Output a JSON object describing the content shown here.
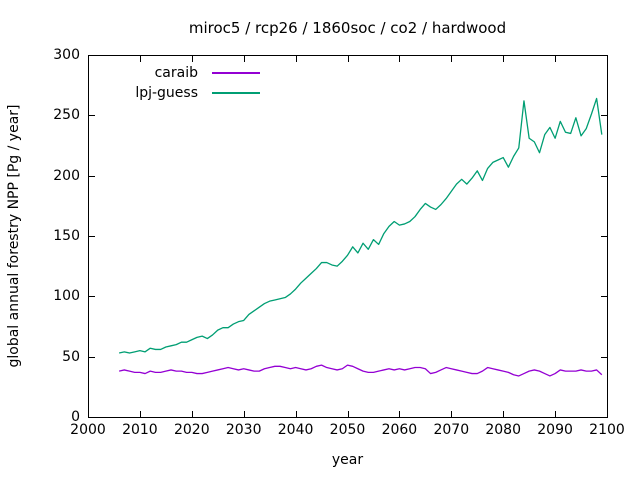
{
  "title": "miroc5 / rcp26 / 1860soc / co2 / hardwood",
  "colors": {
    "background": "#ffffff",
    "text": "#000000",
    "axis": "#000000",
    "caraib": "#9400d3",
    "lpj_guess": "#009e73"
  },
  "chart_data": {
    "type": "line",
    "title": "miroc5 / rcp26 / 1860soc / co2 / hardwood",
    "xlabel": "year",
    "ylabel": "global annual forestry NPP [Pg / year]",
    "xlim": [
      2000,
      2100
    ],
    "ylim": [
      0,
      300
    ],
    "xticks": [
      2000,
      2010,
      2020,
      2030,
      2040,
      2050,
      2060,
      2070,
      2080,
      2090,
      2100
    ],
    "yticks": [
      0,
      50,
      100,
      150,
      200,
      250,
      300
    ],
    "grid": false,
    "legend_position": "top-left-inside",
    "x_start": 2006,
    "x_step": 1,
    "series": [
      {
        "name": "caraib",
        "color": "#9400d3",
        "values": [
          38,
          39,
          38,
          37,
          37,
          36,
          38,
          37,
          37,
          38,
          39,
          38,
          38,
          37,
          37,
          36,
          36,
          37,
          38,
          39,
          40,
          41,
          40,
          39,
          40,
          39,
          38,
          38,
          40,
          41,
          42,
          42,
          41,
          40,
          41,
          40,
          39,
          40,
          42,
          43,
          41,
          40,
          39,
          40,
          43,
          42,
          40,
          38,
          37,
          37,
          38,
          39,
          40,
          39,
          40,
          39,
          40,
          41,
          41,
          40,
          36,
          37,
          39,
          41,
          40,
          39,
          38,
          37,
          36,
          36,
          38,
          41,
          40,
          39,
          38,
          37,
          35,
          34,
          36,
          38,
          39,
          38,
          36,
          34,
          36,
          39,
          38,
          38,
          38,
          39,
          38,
          38,
          39,
          35
        ]
      },
      {
        "name": "lpj-guess",
        "color": "#009e73",
        "values": [
          53,
          54,
          53,
          54,
          55,
          54,
          57,
          56,
          56,
          58,
          59,
          60,
          62,
          62,
          64,
          66,
          67,
          65,
          68,
          72,
          74,
          74,
          77,
          79,
          80,
          85,
          88,
          91,
          94,
          96,
          97,
          98,
          99,
          102,
          106,
          111,
          115,
          119,
          123,
          128,
          128,
          126,
          125,
          129,
          134,
          141,
          136,
          144,
          139,
          147,
          143,
          152,
          158,
          162,
          159,
          160,
          162,
          166,
          172,
          177,
          174,
          172,
          176,
          181,
          187,
          193,
          197,
          193,
          198,
          204,
          196,
          206,
          211,
          213,
          215,
          207,
          216,
          223,
          262,
          231,
          228,
          219,
          234,
          240,
          231,
          245,
          236,
          235,
          248,
          233,
          239,
          251,
          264,
          234
        ]
      }
    ]
  }
}
